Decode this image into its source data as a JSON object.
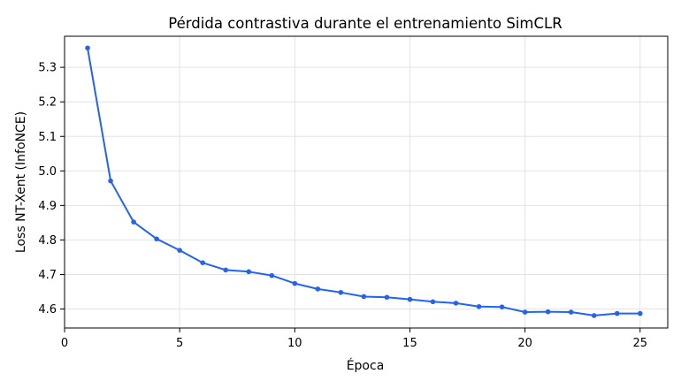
{
  "chart_data": {
    "type": "line",
    "title": "Pérdida contrastiva durante el entrenamiento SimCLR",
    "xlabel": "Época",
    "ylabel": "Loss NT-Xent (InfoNCE)",
    "xlim": [
      0,
      26.2
    ],
    "ylim": [
      4.545,
      5.39
    ],
    "xticks": [
      0,
      5,
      10,
      15,
      20,
      25
    ],
    "yticks": [
      4.6,
      4.7,
      4.8,
      4.9,
      5.0,
      5.1,
      5.2,
      5.3
    ],
    "ytick_labels": [
      "4.6",
      "4.7",
      "4.8",
      "4.9",
      "5.0",
      "5.1",
      "5.2",
      "5.3"
    ],
    "grid": true,
    "color": "#2563eb",
    "series": [
      {
        "x": [
          1,
          2,
          3,
          4,
          5,
          6,
          7,
          8,
          9,
          10,
          11,
          12,
          13,
          14,
          15,
          16,
          17,
          18,
          19,
          20,
          21,
          22,
          23,
          24,
          25
        ],
        "values": [
          5.356,
          4.971,
          4.852,
          4.803,
          4.77,
          4.734,
          4.713,
          4.708,
          4.697,
          4.674,
          4.658,
          4.648,
          4.636,
          4.634,
          4.628,
          4.621,
          4.617,
          4.607,
          4.606,
          4.591,
          4.592,
          4.591,
          4.581,
          4.587,
          4.587
        ]
      }
    ]
  }
}
